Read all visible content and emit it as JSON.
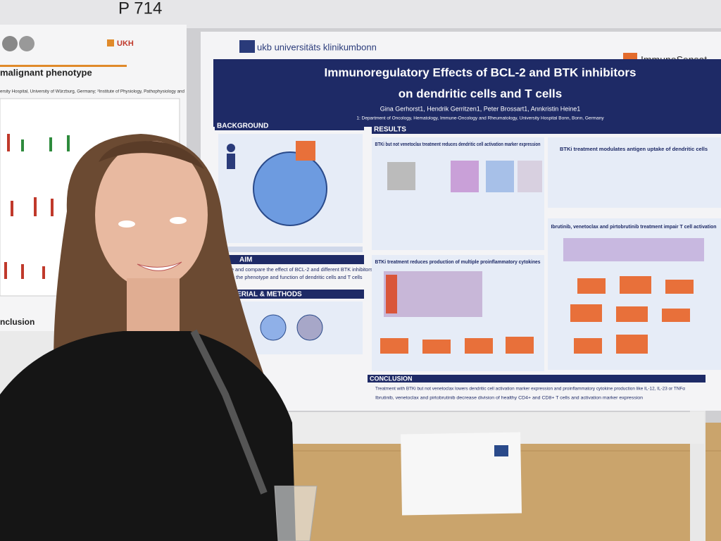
{
  "board_label": "P 714",
  "left_poster": {
    "logo": "UKH",
    "heading": "malignant phenotype",
    "affiliation": "ersity Hospital, University of Würzburg, Germany; ²Institute of Physiology, Pathophysiology and",
    "conclusion": "nclusion"
  },
  "poster": {
    "logo": "ukb universitäts klinikumbonn",
    "partner_logo": "ImmunoSensat",
    "title": [
      "Immunoregulatory Effects of BCL-2 and BTK inhibitors",
      "on dendritic cells and T cells"
    ],
    "authors": "Gina Gerhorst1, Hendrik Gerritzen1, Peter Brossart1, Annkristin Heine1",
    "affiliation": "1: Department of Oncology, Hematology, Immune-Oncology and Rheumatology, University Hospital Bonn, Bonn, Germany",
    "sections": {
      "background": "BACKGROUND",
      "results": "RESULTS",
      "aim": "AIM",
      "methods": "TERIAL & METHODS",
      "conclusion": "CONCLUSION"
    },
    "aim_text": [
      "alyze and compare the effect of BCL-2 and different BTK inhibitors",
      "on the phenotype and function of dendritic cells and T cells"
    ],
    "panels": [
      "BTKi but not venetoclax treatment reduces dendritic cell activation marker expression",
      "BTKi treatment modulates antigen uptake of dendritic cells",
      "BTKi treatment reduces production of multiple proinflammatory cytokines",
      "Ibrutinib, venetoclax and pirtobrutinib treatment impair T cell activation"
    ],
    "conclusions": [
      "Treatment with BTKi but not venetoclax lowers dendritic cell activation marker expression and proinflammatory cytokine production like IL-12, IL-23 or TNFα",
      "Ibrutinib, venetoclax and pirtobrutinib decrease division of healthy CD4+ and CD8+ T cells and activation marker expression"
    ]
  }
}
